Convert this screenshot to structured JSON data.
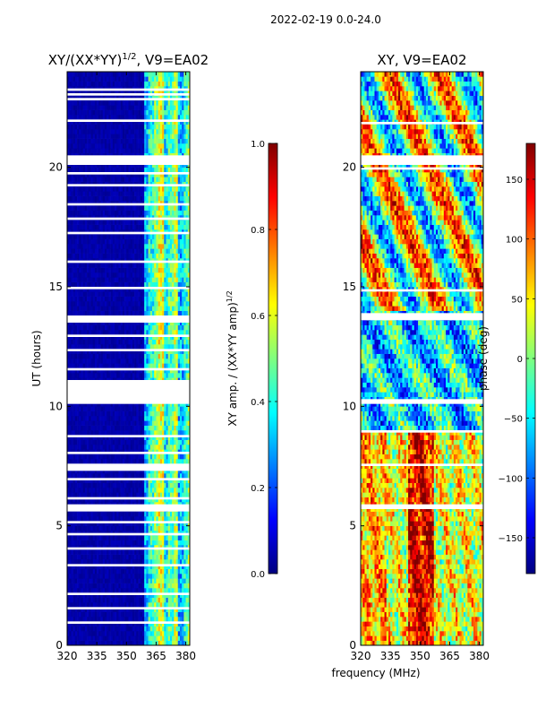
{
  "suptitle": "2022-02-19 0.0-24.0",
  "colors": {
    "background_mask": "#ffffff",
    "axis_stroke": "#000000",
    "jet": [
      "#00007f",
      "#0000ff",
      "#007fff",
      "#00ffff",
      "#7fff7f",
      "#ffff00",
      "#ff7f00",
      "#ff0000",
      "#7f0000"
    ]
  },
  "chart_data": [
    {
      "type": "heatmap",
      "title_base": "XY/(XX*YY)",
      "title_exponent": "1/2",
      "title_suffix": ", V9=EA02",
      "ylabel": "UT (hours)",
      "xlabel": "",
      "xlim": [
        320,
        382
      ],
      "ylim": [
        0,
        24
      ],
      "xticks": [
        "320",
        "335",
        "350",
        "365",
        "380"
      ],
      "yticks": [
        "0",
        "5",
        "10",
        "15",
        "20"
      ],
      "description": "normalized XY amplitude vs frequency and UT; mostly low (~0) below 359 MHz, noisy 0.2-0.6 in 359-380 MHz band",
      "flagged_hours": [
        [
          0.9,
          1.0
        ],
        [
          1.5,
          1.6
        ],
        [
          2.1,
          2.2
        ],
        [
          3.3,
          3.4
        ],
        [
          4.0,
          4.1
        ],
        [
          4.6,
          4.7
        ],
        [
          5.1,
          5.2
        ],
        [
          5.6,
          5.9
        ],
        [
          6.1,
          6.2
        ],
        [
          6.9,
          7.0
        ],
        [
          7.3,
          7.6
        ],
        [
          8.0,
          8.1
        ],
        [
          8.7,
          8.8
        ],
        [
          10.1,
          11.1
        ],
        [
          11.5,
          11.6
        ],
        [
          12.3,
          12.4
        ],
        [
          12.9,
          13.0
        ],
        [
          13.5,
          13.8
        ],
        [
          14.9,
          15.0
        ],
        [
          16.0,
          16.1
        ],
        [
          17.2,
          17.3
        ],
        [
          17.8,
          17.9
        ],
        [
          18.4,
          18.5
        ],
        [
          19.2,
          19.3
        ],
        [
          19.7,
          19.8
        ],
        [
          20.1,
          20.5
        ],
        [
          21.9,
          22.0
        ],
        [
          22.8,
          22.9
        ],
        [
          23.0,
          23.1
        ],
        [
          23.2,
          23.3
        ]
      ]
    },
    {
      "type": "colorbar",
      "label_base": "XY amp. / (XX*YY amp)",
      "label_exponent": "1/2",
      "vmin": 0.0,
      "vmax": 1.0,
      "ticks": [
        "0.0",
        "0.2",
        "0.4",
        "0.6",
        "0.8",
        "1.0"
      ],
      "tick_values": [
        0.0,
        0.2,
        0.4,
        0.6,
        0.8,
        1.0
      ]
    },
    {
      "type": "heatmap",
      "title": "XY, V9=EA02",
      "xlabel": "frequency (MHz)",
      "ylabel": "",
      "xlim": [
        320,
        382
      ],
      "ylim": [
        0,
        24
      ],
      "xticks": [
        "320",
        "335",
        "350",
        "365",
        "380"
      ],
      "yticks": [
        "0",
        "5",
        "10",
        "15",
        "20"
      ],
      "description": "XY phase vs frequency and UT; red/orange band near 345-356 MHz at low UT, mixed cyan/yellow elsewhere",
      "flagged_hours": [
        [
          5.7,
          5.9
        ],
        [
          7.5,
          7.6
        ],
        [
          8.9,
          9.0
        ],
        [
          10.1,
          10.3
        ],
        [
          13.6,
          13.9
        ],
        [
          14.8,
          14.9
        ],
        [
          19.9,
          20.0
        ],
        [
          20.1,
          20.5
        ],
        [
          21.8,
          21.9
        ]
      ]
    },
    {
      "type": "colorbar",
      "label": "phase (deg)",
      "vmin": -180,
      "vmax": 180,
      "ticks": [
        "−150",
        "−100",
        "−50",
        "0",
        "50",
        "100",
        "150"
      ],
      "tick_values": [
        -150,
        -100,
        -50,
        0,
        50,
        100,
        150
      ]
    }
  ]
}
